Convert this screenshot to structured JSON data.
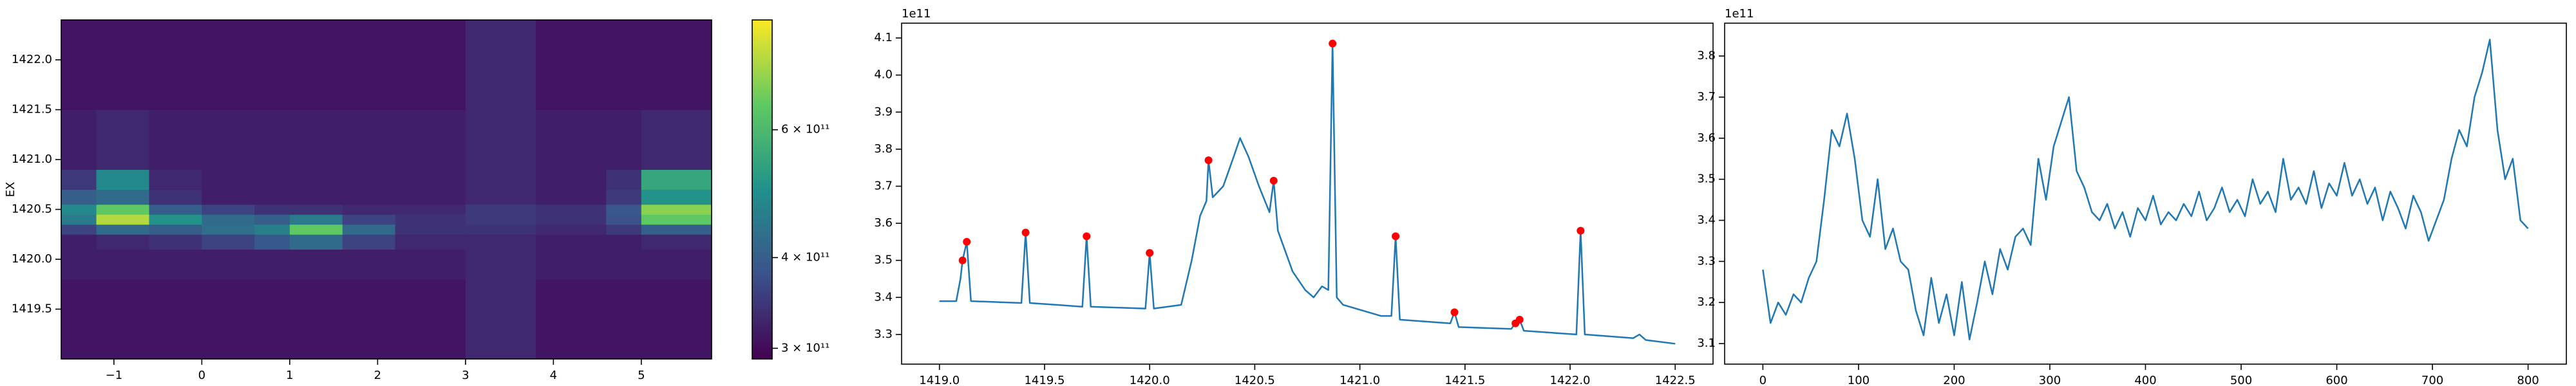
{
  "chart_data": [
    {
      "type": "heatmap",
      "ylabel": "EX",
      "x_edges": [
        -1.6,
        -1.2,
        -0.6,
        0,
        0.6,
        1.0,
        1.6,
        2.2,
        3.0,
        3.8,
        4.6,
        5.0,
        5.8
      ],
      "y_edges": [
        1419.0,
        1419.8,
        1420.1,
        1420.25,
        1420.35,
        1420.45,
        1420.55,
        1420.7,
        1420.9,
        1421.5,
        1422.4
      ],
      "z": [
        [
          310000000000.0,
          310000000000.0,
          310000000000.0,
          310000000000.0,
          310000000000.0,
          310000000000.0,
          310000000000.0,
          310000000000.0,
          330000000000.0,
          310000000000.0,
          310000000000.0,
          310000000000.0
        ],
        [
          320000000000.0,
          320000000000.0,
          320000000000.0,
          320000000000.0,
          320000000000.0,
          320000000000.0,
          320000000000.0,
          320000000000.0,
          330000000000.0,
          320000000000.0,
          320000000000.0,
          320000000000.0
        ],
        [
          320000000000.0,
          330000000000.0,
          340000000000.0,
          360000000000.0,
          390000000000.0,
          420000000000.0,
          360000000000.0,
          330000000000.0,
          330000000000.0,
          320000000000.0,
          320000000000.0,
          330000000000.0
        ],
        [
          360000000000.0,
          420000000000.0,
          400000000000.0,
          430000000000.0,
          460000000000.0,
          650000000000.0,
          420000000000.0,
          340000000000.0,
          340000000000.0,
          330000000000.0,
          350000000000.0,
          400000000000.0
        ],
        [
          450000000000.0,
          750000000000.0,
          500000000000.0,
          420000000000.0,
          400000000000.0,
          450000000000.0,
          360000000000.0,
          340000000000.0,
          350000000000.0,
          340000000000.0,
          380000000000.0,
          650000000000.0
        ],
        [
          480000000000.0,
          650000000000.0,
          400000000000.0,
          360000000000.0,
          340000000000.0,
          340000000000.0,
          330000000000.0,
          330000000000.0,
          350000000000.0,
          340000000000.0,
          390000000000.0,
          700000000000.0
        ],
        [
          400000000000.0,
          420000000000.0,
          340000000000.0,
          320000000000.0,
          320000000000.0,
          320000000000.0,
          320000000000.0,
          320000000000.0,
          330000000000.0,
          320000000000.0,
          350000000000.0,
          500000000000.0
        ],
        [
          350000000000.0,
          480000000000.0,
          330000000000.0,
          320000000000.0,
          320000000000.0,
          320000000000.0,
          320000000000.0,
          320000000000.0,
          330000000000.0,
          320000000000.0,
          340000000000.0,
          550000000000.0
        ],
        [
          320000000000.0,
          330000000000.0,
          320000000000.0,
          320000000000.0,
          320000000000.0,
          320000000000.0,
          320000000000.0,
          320000000000.0,
          330000000000.0,
          320000000000.0,
          320000000000.0,
          330000000000.0
        ],
        [
          310000000000.0,
          310000000000.0,
          310000000000.0,
          310000000000.0,
          310000000000.0,
          310000000000.0,
          310000000000.0,
          310000000000.0,
          330000000000.0,
          310000000000.0,
          310000000000.0,
          310000000000.0
        ]
      ],
      "xlim": [
        -1.6,
        5.8
      ],
      "ylim": [
        1419.0,
        1422.4
      ],
      "xticks": [
        {
          "value": -1,
          "label": "−1"
        },
        0,
        1,
        2,
        3,
        4,
        5
      ],
      "yticks": [
        1419.5,
        {
          "value": 1420,
          "label": "1420.0"
        },
        1420.5,
        {
          "value": 1421,
          "label": "1421.0"
        },
        1421.5,
        {
          "value": 1422,
          "label": "1422.0"
        }
      ],
      "colormap": "viridis",
      "colorbar": {
        "scale": "log",
        "lim": [
          290000000000.0,
          850000000000.0
        ],
        "ticks": [
          {
            "value": 300000000000.0,
            "label": "3 × 10¹¹"
          },
          {
            "value": 400000000000.0,
            "label": "4 × 10¹¹"
          },
          {
            "value": 600000000000.0,
            "label": "6 × 10¹¹"
          }
        ]
      }
    },
    {
      "type": "line",
      "offset_label": "1e11",
      "series": [
        {
          "color": "#1f77b4",
          "style": "line",
          "x": [
            1419.0,
            1419.08,
            1419.1,
            1419.11,
            1419.13,
            1419.15,
            1419.39,
            1419.41,
            1419.43,
            1419.68,
            1419.7,
            1419.72,
            1419.98,
            1420.0,
            1420.02,
            1420.15,
            1420.2,
            1420.24,
            1420.27,
            1420.28,
            1420.3,
            1420.35,
            1420.4,
            1420.43,
            1420.47,
            1420.52,
            1420.57,
            1420.59,
            1420.61,
            1420.68,
            1420.74,
            1420.78,
            1420.82,
            1420.85,
            1420.87,
            1420.89,
            1420.92,
            1421.1,
            1421.15,
            1421.17,
            1421.19,
            1421.43,
            1421.45,
            1421.47,
            1421.72,
            1421.74,
            1421.76,
            1421.78,
            1422.03,
            1422.05,
            1422.07,
            1422.3,
            1422.33,
            1422.36,
            1422.5
          ],
          "values": [
            3.39,
            3.39,
            3.45,
            3.5,
            3.55,
            3.39,
            3.385,
            3.575,
            3.385,
            3.375,
            3.565,
            3.375,
            3.37,
            3.52,
            3.37,
            3.38,
            3.5,
            3.62,
            3.66,
            3.77,
            3.67,
            3.7,
            3.78,
            3.83,
            3.78,
            3.7,
            3.63,
            3.715,
            3.58,
            3.47,
            3.42,
            3.4,
            3.43,
            3.42,
            4.085,
            3.4,
            3.38,
            3.35,
            3.35,
            3.565,
            3.34,
            3.33,
            3.36,
            3.32,
            3.315,
            3.33,
            3.34,
            3.31,
            3.3,
            3.58,
            3.3,
            3.29,
            3.3,
            3.285,
            3.275
          ]
        },
        {
          "color": "#ff0000",
          "style": "marker",
          "x": [
            1419.11,
            1419.13,
            1419.41,
            1419.7,
            1420.0,
            1420.28,
            1420.59,
            1420.87,
            1421.17,
            1421.45,
            1421.74,
            1421.76,
            1422.05
          ],
          "values": [
            3.5,
            3.55,
            3.575,
            3.565,
            3.52,
            3.77,
            3.715,
            4.085,
            3.565,
            3.36,
            3.33,
            3.34,
            3.58
          ]
        }
      ],
      "xlim": [
        1418.82,
        1422.68
      ],
      "ylim": [
        3.22,
        4.14
      ],
      "xticks": [
        {
          "value": 1419,
          "label": "1419.0"
        },
        1419.5,
        {
          "value": 1420,
          "label": "1420.0"
        },
        1420.5,
        {
          "value": 1421,
          "label": "1421.0"
        },
        1421.5,
        {
          "value": 1422,
          "label": "1422.0"
        },
        1422.5
      ],
      "yticks": [
        3.3,
        3.4,
        3.5,
        3.6,
        3.7,
        3.8,
        3.9,
        {
          "value": 4,
          "label": "4.0"
        },
        4.1
      ]
    },
    {
      "type": "line",
      "offset_label": "1e11",
      "series": [
        {
          "color": "#1f77b4",
          "style": "line",
          "x": [
            0,
            8,
            16,
            24,
            32,
            40,
            48,
            56,
            64,
            72,
            80,
            88,
            96,
            104,
            112,
            120,
            128,
            136,
            144,
            152,
            160,
            168,
            176,
            184,
            192,
            200,
            208,
            216,
            224,
            232,
            240,
            248,
            256,
            264,
            272,
            280,
            288,
            296,
            304,
            312,
            320,
            328,
            336,
            344,
            352,
            360,
            368,
            376,
            384,
            392,
            400,
            408,
            416,
            424,
            432,
            440,
            448,
            456,
            464,
            472,
            480,
            488,
            496,
            504,
            512,
            520,
            528,
            536,
            544,
            552,
            560,
            568,
            576,
            584,
            592,
            600,
            608,
            616,
            624,
            632,
            640,
            648,
            656,
            664,
            672,
            680,
            688,
            696,
            704,
            712,
            720,
            728,
            736,
            744,
            752,
            760,
            768,
            776,
            784,
            792,
            800
          ],
          "values": [
            3.28,
            3.15,
            3.2,
            3.17,
            3.22,
            3.2,
            3.26,
            3.3,
            3.45,
            3.62,
            3.58,
            3.66,
            3.55,
            3.4,
            3.36,
            3.5,
            3.33,
            3.38,
            3.3,
            3.28,
            3.18,
            3.12,
            3.26,
            3.15,
            3.22,
            3.12,
            3.25,
            3.11,
            3.2,
            3.3,
            3.22,
            3.33,
            3.28,
            3.36,
            3.38,
            3.34,
            3.55,
            3.45,
            3.58,
            3.64,
            3.7,
            3.52,
            3.48,
            3.42,
            3.4,
            3.44,
            3.38,
            3.42,
            3.36,
            3.43,
            3.4,
            3.46,
            3.39,
            3.42,
            3.4,
            3.44,
            3.41,
            3.47,
            3.4,
            3.43,
            3.48,
            3.42,
            3.45,
            3.41,
            3.5,
            3.44,
            3.47,
            3.42,
            3.55,
            3.45,
            3.48,
            3.44,
            3.52,
            3.43,
            3.49,
            3.46,
            3.54,
            3.46,
            3.5,
            3.44,
            3.48,
            3.4,
            3.47,
            3.43,
            3.38,
            3.46,
            3.42,
            3.35,
            3.4,
            3.45,
            3.55,
            3.62,
            3.58,
            3.7,
            3.76,
            3.84,
            3.62,
            3.5,
            3.55,
            3.4,
            3.38
          ]
        }
      ],
      "xlim": [
        -40,
        840
      ],
      "ylim": [
        3.05,
        3.88
      ],
      "xticks": [
        0,
        100,
        200,
        300,
        400,
        500,
        600,
        700,
        800
      ],
      "yticks": [
        3.1,
        3.2,
        3.3,
        3.4,
        3.5,
        3.6,
        3.7,
        3.8
      ]
    }
  ]
}
